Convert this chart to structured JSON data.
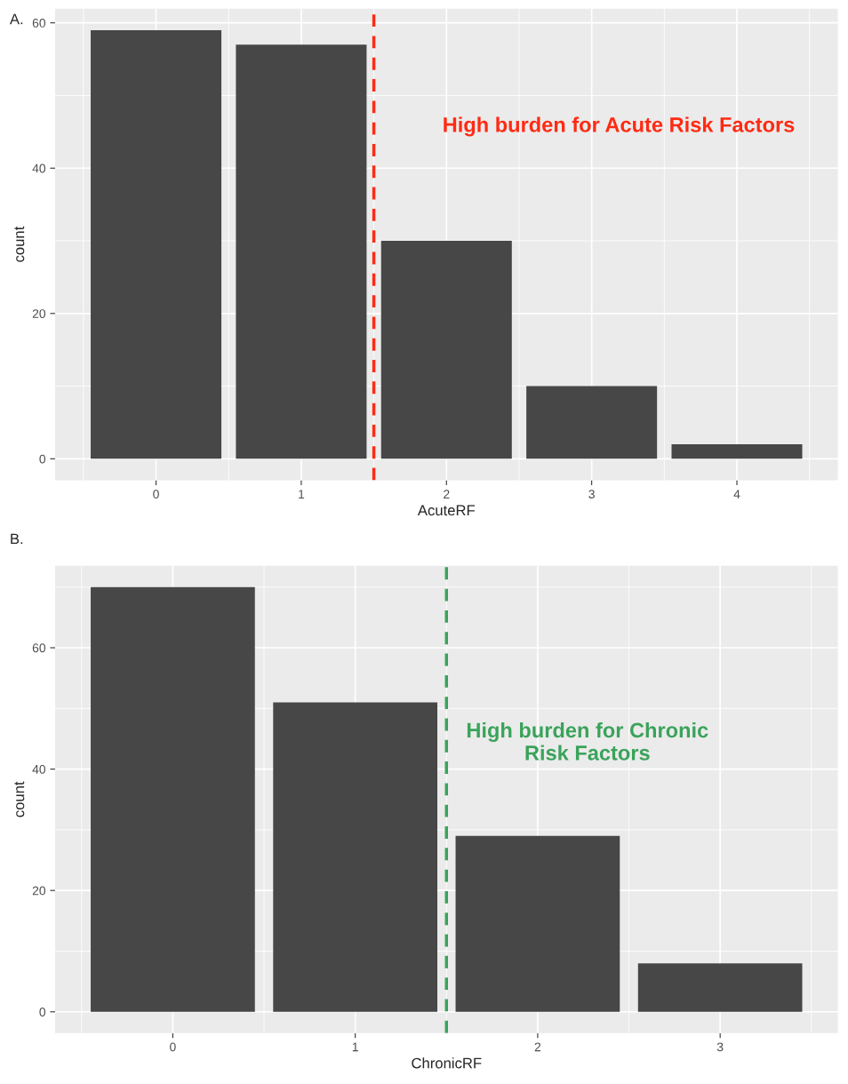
{
  "chart_data": [
    {
      "type": "bar",
      "title": "A.",
      "xlabel": "AcuteRF",
      "ylabel": "count",
      "x": [
        0,
        1,
        2,
        3,
        4
      ],
      "values": [
        59,
        57,
        30,
        10,
        2
      ],
      "color": "#474747",
      "xlim": [
        -0.695,
        4.695
      ],
      "xticks": [
        0,
        1,
        2,
        3,
        4
      ],
      "ylim": [
        -2.95,
        61.95
      ],
      "yticks": [
        0,
        20,
        40,
        60
      ],
      "grid": true,
      "ref_lines": [
        {
          "axis": "x",
          "value": 1.5,
          "color": "#ff2a12",
          "line_style": "dashed"
        }
      ],
      "annotations": [
        "High burden for Acute Risk Factors"
      ]
    },
    {
      "type": "bar",
      "title": "B.",
      "xlabel": "ChronicRF",
      "ylabel": "count",
      "x": [
        0,
        1,
        2,
        3
      ],
      "values": [
        70,
        51,
        29,
        8
      ],
      "color": "#474747",
      "xlim": [
        -0.645,
        3.645
      ],
      "xticks": [
        0,
        1,
        2,
        3
      ],
      "ylim": [
        -3.5,
        73.5
      ],
      "yticks": [
        0,
        20,
        40,
        60
      ],
      "grid": true,
      "ref_lines": [
        {
          "axis": "x",
          "value": 1.5,
          "color": "#3aa35a",
          "line_style": "dashed"
        }
      ],
      "annotations": [
        "High burden for Chronic\nRisk Factors"
      ]
    }
  ]
}
